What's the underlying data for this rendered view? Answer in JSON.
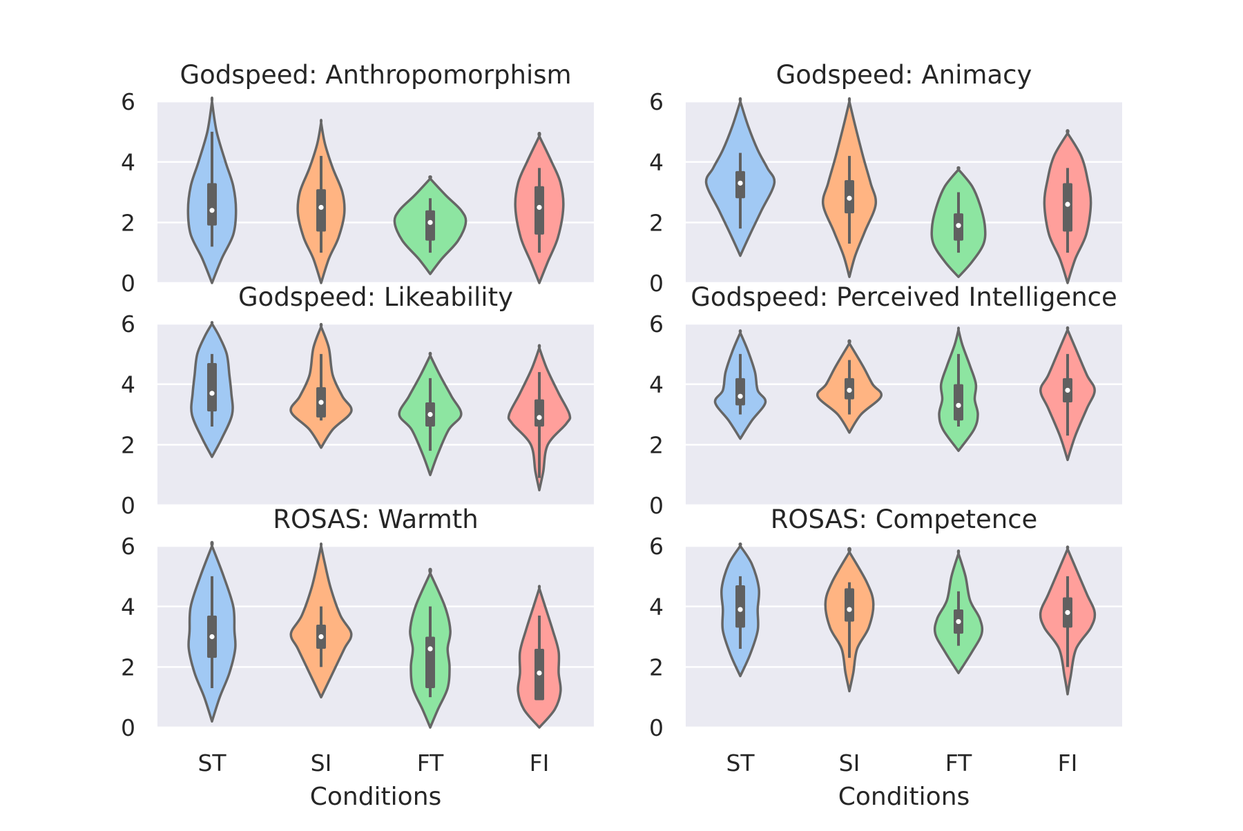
{
  "chart_data": {
    "type": "violin",
    "categories": [
      "ST",
      "SI",
      "FT",
      "FI"
    ],
    "xlabel": "Conditions",
    "ylim": [
      0,
      6
    ],
    "yticks": [
      "0",
      "2",
      "4",
      "6"
    ],
    "grid": true,
    "colors": [
      "#a1c9f4",
      "#ffb482",
      "#8de5a1",
      "#ff9f9b"
    ],
    "edge_color": "#666666",
    "panels": [
      {
        "title": "Godspeed: Anthropomorphism",
        "violins": [
          {
            "category": "ST",
            "median": 2.4,
            "q1": 1.9,
            "q3": 3.3,
            "wlo": 1.2,
            "whi": 5.0,
            "kde": [
              [
                0.0,
                0.0
              ],
              [
                0.8,
                0.25
              ],
              [
                1.6,
                0.55
              ],
              [
                2.4,
                0.62
              ],
              [
                3.2,
                0.55
              ],
              [
                4.0,
                0.35
              ],
              [
                5.0,
                0.12
              ],
              [
                6.0,
                0.0
              ]
            ]
          },
          {
            "category": "SI",
            "median": 2.5,
            "q1": 1.7,
            "q3": 3.1,
            "wlo": 1.0,
            "whi": 4.2,
            "kde": [
              [
                0.0,
                0.0
              ],
              [
                0.8,
                0.2
              ],
              [
                1.5,
                0.45
              ],
              [
                2.3,
                0.6
              ],
              [
                3.0,
                0.55
              ],
              [
                3.8,
                0.3
              ],
              [
                4.6,
                0.1
              ],
              [
                5.3,
                0.0
              ]
            ]
          },
          {
            "category": "FT",
            "median": 2.0,
            "q1": 1.4,
            "q3": 2.4,
            "wlo": 1.0,
            "whi": 2.8,
            "kde": [
              [
                0.3,
                0.0
              ],
              [
                0.8,
                0.3
              ],
              [
                1.4,
                0.72
              ],
              [
                2.0,
                0.92
              ],
              [
                2.4,
                0.8
              ],
              [
                2.9,
                0.4
              ],
              [
                3.45,
                0.0
              ]
            ]
          },
          {
            "category": "FI",
            "median": 2.5,
            "q1": 1.6,
            "q3": 3.2,
            "wlo": 1.0,
            "whi": 3.8,
            "kde": [
              [
                0.0,
                0.0
              ],
              [
                0.7,
                0.22
              ],
              [
                1.5,
                0.48
              ],
              [
                2.5,
                0.62
              ],
              [
                3.3,
                0.55
              ],
              [
                4.0,
                0.32
              ],
              [
                4.85,
                0.0
              ]
            ]
          }
        ]
      },
      {
        "title": "Godspeed: Animacy",
        "violins": [
          {
            "category": "ST",
            "median": 3.3,
            "q1": 2.8,
            "q3": 3.7,
            "wlo": 1.8,
            "whi": 4.3,
            "kde": [
              [
                0.9,
                0.0
              ],
              [
                1.6,
                0.25
              ],
              [
                2.4,
                0.55
              ],
              [
                3.3,
                0.88
              ],
              [
                3.8,
                0.7
              ],
              [
                4.4,
                0.45
              ],
              [
                5.2,
                0.2
              ],
              [
                6.0,
                0.0
              ]
            ]
          },
          {
            "category": "SI",
            "median": 2.8,
            "q1": 2.3,
            "q3": 3.4,
            "wlo": 1.3,
            "whi": 4.2,
            "kde": [
              [
                0.2,
                0.0
              ],
              [
                0.9,
                0.15
              ],
              [
                1.7,
                0.4
              ],
              [
                2.6,
                0.68
              ],
              [
                3.3,
                0.55
              ],
              [
                4.2,
                0.35
              ],
              [
                5.2,
                0.15
              ],
              [
                6.0,
                0.0
              ]
            ]
          },
          {
            "category": "FT",
            "median": 1.9,
            "q1": 1.4,
            "q3": 2.3,
            "wlo": 1.0,
            "whi": 3.0,
            "kde": [
              [
                0.2,
                0.0
              ],
              [
                0.7,
                0.35
              ],
              [
                1.3,
                0.65
              ],
              [
                1.9,
                0.68
              ],
              [
                2.6,
                0.55
              ],
              [
                3.2,
                0.35
              ],
              [
                3.75,
                0.0
              ]
            ]
          },
          {
            "category": "FI",
            "median": 2.6,
            "q1": 1.7,
            "q3": 3.3,
            "wlo": 1.0,
            "whi": 3.8,
            "kde": [
              [
                0.0,
                0.0
              ],
              [
                0.8,
                0.2
              ],
              [
                1.6,
                0.48
              ],
              [
                2.6,
                0.6
              ],
              [
                3.4,
                0.52
              ],
              [
                4.2,
                0.35
              ],
              [
                4.95,
                0.0
              ]
            ]
          }
        ]
      },
      {
        "title": "Godspeed: Likeability",
        "violins": [
          {
            "category": "ST",
            "median": 3.7,
            "q1": 3.1,
            "q3": 4.7,
            "wlo": 2.6,
            "whi": 5.0,
            "kde": [
              [
                1.6,
                0.0
              ],
              [
                2.2,
                0.25
              ],
              [
                3.0,
                0.52
              ],
              [
                3.7,
                0.5
              ],
              [
                4.3,
                0.45
              ],
              [
                5.0,
                0.38
              ],
              [
                5.6,
                0.18
              ],
              [
                6.0,
                0.0
              ]
            ]
          },
          {
            "category": "SI",
            "median": 3.4,
            "q1": 2.9,
            "q3": 3.9,
            "wlo": 2.8,
            "whi": 5.0,
            "kde": [
              [
                1.9,
                0.0
              ],
              [
                2.5,
                0.3
              ],
              [
                3.1,
                0.78
              ],
              [
                3.6,
                0.55
              ],
              [
                4.3,
                0.3
              ],
              [
                5.2,
                0.2
              ],
              [
                5.9,
                0.0
              ]
            ]
          },
          {
            "category": "FT",
            "median": 3.0,
            "q1": 2.6,
            "q3": 3.4,
            "wlo": 1.8,
            "whi": 4.2,
            "kde": [
              [
                1.0,
                0.0
              ],
              [
                1.7,
                0.2
              ],
              [
                2.5,
                0.48
              ],
              [
                3.0,
                0.8
              ],
              [
                3.6,
                0.55
              ],
              [
                4.3,
                0.25
              ],
              [
                4.95,
                0.0
              ]
            ]
          },
          {
            "category": "FI",
            "median": 2.9,
            "q1": 2.6,
            "q3": 3.5,
            "wlo": 0.9,
            "whi": 4.4,
            "kde": [
              [
                0.5,
                0.0
              ],
              [
                1.1,
                0.1
              ],
              [
                2.0,
                0.22
              ],
              [
                2.7,
                0.7
              ],
              [
                3.0,
                0.78
              ],
              [
                3.7,
                0.5
              ],
              [
                4.5,
                0.2
              ],
              [
                5.2,
                0.0
              ]
            ]
          }
        ]
      },
      {
        "title": "Godspeed: Perceived Intelligence",
        "violins": [
          {
            "category": "ST",
            "median": 3.6,
            "q1": 3.3,
            "q3": 4.2,
            "wlo": 3.0,
            "whi": 5.0,
            "kde": [
              [
                2.2,
                0.0
              ],
              [
                2.8,
                0.3
              ],
              [
                3.4,
                0.65
              ],
              [
                3.8,
                0.45
              ],
              [
                4.4,
                0.38
              ],
              [
                5.1,
                0.2
              ],
              [
                5.7,
                0.0
              ]
            ]
          },
          {
            "category": "SI",
            "median": 3.8,
            "q1": 3.5,
            "q3": 4.2,
            "wlo": 3.0,
            "whi": 4.8,
            "kde": [
              [
                2.4,
                0.0
              ],
              [
                3.0,
                0.3
              ],
              [
                3.6,
                0.82
              ],
              [
                4.0,
                0.6
              ],
              [
                4.6,
                0.35
              ],
              [
                5.35,
                0.0
              ]
            ]
          },
          {
            "category": "FT",
            "median": 3.3,
            "q1": 2.8,
            "q3": 4.0,
            "wlo": 2.6,
            "whi": 5.0,
            "kde": [
              [
                1.8,
                0.0
              ],
              [
                2.5,
                0.4
              ],
              [
                3.0,
                0.5
              ],
              [
                3.5,
                0.42
              ],
              [
                4.0,
                0.45
              ],
              [
                4.6,
                0.3
              ],
              [
                5.3,
                0.1
              ],
              [
                5.8,
                0.0
              ]
            ]
          },
          {
            "category": "FI",
            "median": 3.8,
            "q1": 3.4,
            "q3": 4.2,
            "wlo": 2.3,
            "whi": 5.0,
            "kde": [
              [
                1.5,
                0.0
              ],
              [
                2.3,
                0.2
              ],
              [
                3.2,
                0.5
              ],
              [
                3.8,
                0.7
              ],
              [
                4.3,
                0.5
              ],
              [
                5.2,
                0.2
              ],
              [
                5.8,
                0.0
              ]
            ]
          }
        ]
      },
      {
        "title": "ROSAS: Warmth",
        "violins": [
          {
            "category": "ST",
            "median": 3.0,
            "q1": 2.3,
            "q3": 3.7,
            "wlo": 1.3,
            "whi": 5.0,
            "kde": [
              [
                0.2,
                0.0
              ],
              [
                1.0,
                0.2
              ],
              [
                1.8,
                0.45
              ],
              [
                2.6,
                0.6
              ],
              [
                3.2,
                0.58
              ],
              [
                4.0,
                0.55
              ],
              [
                5.0,
                0.3
              ],
              [
                6.0,
                0.0
              ]
            ]
          },
          {
            "category": "SI",
            "median": 3.0,
            "q1": 2.6,
            "q3": 3.4,
            "wlo": 2.0,
            "whi": 4.0,
            "kde": [
              [
                1.0,
                0.0
              ],
              [
                1.8,
                0.3
              ],
              [
                2.6,
                0.6
              ],
              [
                3.1,
                0.78
              ],
              [
                3.7,
                0.5
              ],
              [
                4.6,
                0.25
              ],
              [
                5.4,
                0.1
              ],
              [
                6.0,
                0.0
              ]
            ]
          },
          {
            "category": "FT",
            "median": 2.6,
            "q1": 1.3,
            "q3": 3.0,
            "wlo": 1.0,
            "whi": 4.0,
            "kde": [
              [
                0.0,
                0.0
              ],
              [
                0.6,
                0.2
              ],
              [
                1.3,
                0.45
              ],
              [
                2.0,
                0.5
              ],
              [
                2.6,
                0.45
              ],
              [
                3.2,
                0.52
              ],
              [
                4.0,
                0.38
              ],
              [
                5.1,
                0.0
              ]
            ]
          },
          {
            "category": "FI",
            "median": 1.8,
            "q1": 0.9,
            "q3": 2.6,
            "wlo": 0.9,
            "whi": 3.7,
            "kde": [
              [
                0.0,
                0.0
              ],
              [
                0.6,
                0.4
              ],
              [
                1.2,
                0.55
              ],
              [
                1.8,
                0.5
              ],
              [
                2.5,
                0.5
              ],
              [
                3.2,
                0.35
              ],
              [
                4.0,
                0.15
              ],
              [
                4.6,
                0.0
              ]
            ]
          }
        ]
      },
      {
        "title": "ROSAS: Competence",
        "violins": [
          {
            "category": "ST",
            "median": 3.9,
            "q1": 3.3,
            "q3": 4.7,
            "wlo": 2.6,
            "whi": 5.0,
            "kde": [
              [
                1.7,
                0.0
              ],
              [
                2.4,
                0.25
              ],
              [
                3.2,
                0.45
              ],
              [
                3.9,
                0.45
              ],
              [
                4.6,
                0.48
              ],
              [
                5.4,
                0.3
              ],
              [
                6.0,
                0.0
              ]
            ]
          },
          {
            "category": "SI",
            "median": 3.9,
            "q1": 3.5,
            "q3": 4.6,
            "wlo": 2.3,
            "whi": 4.8,
            "kde": [
              [
                1.2,
                0.0
              ],
              [
                1.8,
                0.1
              ],
              [
                2.6,
                0.2
              ],
              [
                3.3,
                0.5
              ],
              [
                4.1,
                0.62
              ],
              [
                4.8,
                0.45
              ],
              [
                5.8,
                0.0
              ]
            ]
          },
          {
            "category": "FT",
            "median": 3.5,
            "q1": 3.1,
            "q3": 3.9,
            "wlo": 2.7,
            "whi": 4.5,
            "kde": [
              [
                1.8,
                0.0
              ],
              [
                2.5,
                0.35
              ],
              [
                3.1,
                0.6
              ],
              [
                3.6,
                0.55
              ],
              [
                4.2,
                0.3
              ],
              [
                5.0,
                0.18
              ],
              [
                5.75,
                0.0
              ]
            ]
          },
          {
            "category": "FI",
            "median": 3.8,
            "q1": 3.3,
            "q3": 4.3,
            "wlo": 2.0,
            "whi": 5.0,
            "kde": [
              [
                1.1,
                0.0
              ],
              [
                1.7,
                0.08
              ],
              [
                2.6,
                0.22
              ],
              [
                3.3,
                0.6
              ],
              [
                3.8,
                0.7
              ],
              [
                4.4,
                0.5
              ],
              [
                5.3,
                0.2
              ],
              [
                5.9,
                0.0
              ]
            ]
          }
        ]
      }
    ]
  }
}
